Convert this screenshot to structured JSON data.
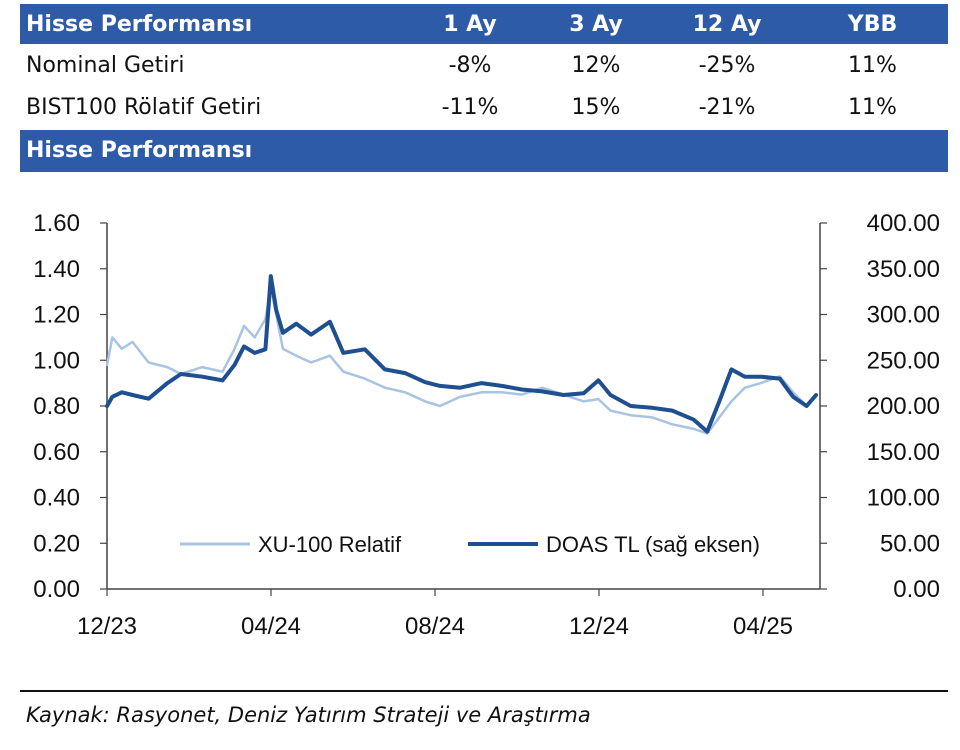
{
  "table": {
    "header": {
      "title": "Hisse Performansı",
      "col1": "1 Ay",
      "col2": "3 Ay",
      "col3": "12 Ay",
      "col4": "YBB"
    },
    "rows": [
      {
        "label": "Nominal Getiri",
        "v1": "-8%",
        "v2": "12%",
        "v3": "-25%",
        "v4": "11%"
      },
      {
        "label": "BIST100 Rölatif Getiri",
        "v1": "-11%",
        "v2": "15%",
        "v3": "-21%",
        "v4": "11%"
      }
    ]
  },
  "chart_header": "Hisse Performansı",
  "source": "Kaynak: Rasyonet, Deniz Yatırım Strateji ve Araştırma",
  "chart_data": {
    "type": "line",
    "x_tick_labels": [
      "12/23",
      "04/24",
      "08/24",
      "12/24",
      "04/25"
    ],
    "x_range": [
      "2023-12",
      "2025-05"
    ],
    "left_ylim": [
      0,
      1.6
    ],
    "left_ticks": [
      "0.00",
      "0.20",
      "0.40",
      "0.60",
      "0.80",
      "1.00",
      "1.20",
      "1.40",
      "1.60"
    ],
    "right_ylim": [
      0,
      400
    ],
    "right_ticks": [
      "0.00",
      "50.00",
      "100.00",
      "150.00",
      "200.00",
      "250.00",
      "300.00",
      "350.00",
      "400.00"
    ],
    "legend_position": "bottom",
    "grid": false,
    "series": [
      {
        "name": "XU-100 Relatif",
        "axis": "left",
        "color": "#a9c3e3",
        "points": [
          [
            "2023-12-01",
            0.98
          ],
          [
            "2023-12-05",
            1.1
          ],
          [
            "2023-12-12",
            1.05
          ],
          [
            "2023-12-20",
            1.08
          ],
          [
            "2024-01-01",
            0.99
          ],
          [
            "2024-01-15",
            0.97
          ],
          [
            "2024-01-25",
            0.94
          ],
          [
            "2024-02-10",
            0.97
          ],
          [
            "2024-02-25",
            0.95
          ],
          [
            "2024-03-05",
            1.05
          ],
          [
            "2024-03-12",
            1.15
          ],
          [
            "2024-03-20",
            1.1
          ],
          [
            "2024-03-28",
            1.18
          ],
          [
            "2024-04-01",
            1.32
          ],
          [
            "2024-04-05",
            1.2
          ],
          [
            "2024-04-10",
            1.05
          ],
          [
            "2024-04-20",
            1.02
          ],
          [
            "2024-05-01",
            0.99
          ],
          [
            "2024-05-15",
            1.02
          ],
          [
            "2024-05-25",
            0.95
          ],
          [
            "2024-06-10",
            0.92
          ],
          [
            "2024-06-25",
            0.88
          ],
          [
            "2024-07-10",
            0.86
          ],
          [
            "2024-07-25",
            0.82
          ],
          [
            "2024-08-05",
            0.8
          ],
          [
            "2024-08-20",
            0.84
          ],
          [
            "2024-09-05",
            0.86
          ],
          [
            "2024-09-20",
            0.86
          ],
          [
            "2024-10-05",
            0.85
          ],
          [
            "2024-10-20",
            0.88
          ],
          [
            "2024-11-05",
            0.85
          ],
          [
            "2024-11-20",
            0.82
          ],
          [
            "2024-12-01",
            0.83
          ],
          [
            "2024-12-10",
            0.78
          ],
          [
            "2024-12-25",
            0.76
          ],
          [
            "2025-01-10",
            0.75
          ],
          [
            "2025-01-25",
            0.72
          ],
          [
            "2025-02-10",
            0.7
          ],
          [
            "2025-02-20",
            0.68
          ],
          [
            "2025-03-01",
            0.75
          ],
          [
            "2025-03-10",
            0.82
          ],
          [
            "2025-03-20",
            0.88
          ],
          [
            "2025-04-01",
            0.9
          ],
          [
            "2025-04-15",
            0.93
          ],
          [
            "2025-04-25",
            0.86
          ],
          [
            "2025-05-05",
            0.8
          ],
          [
            "2025-05-12",
            0.84
          ]
        ]
      },
      {
        "name": "DOAS TL (sağ eksen)",
        "axis": "right",
        "color": "#1d4f91",
        "points": [
          [
            "2023-12-01",
            200
          ],
          [
            "2023-12-05",
            210
          ],
          [
            "2023-12-12",
            215
          ],
          [
            "2023-12-20",
            212
          ],
          [
            "2024-01-01",
            208
          ],
          [
            "2024-01-15",
            225
          ],
          [
            "2024-01-25",
            235
          ],
          [
            "2024-02-10",
            232
          ],
          [
            "2024-02-25",
            228
          ],
          [
            "2024-03-05",
            245
          ],
          [
            "2024-03-12",
            265
          ],
          [
            "2024-03-20",
            258
          ],
          [
            "2024-03-28",
            262
          ],
          [
            "2024-04-01",
            342
          ],
          [
            "2024-04-05",
            305
          ],
          [
            "2024-04-10",
            280
          ],
          [
            "2024-04-20",
            290
          ],
          [
            "2024-05-01",
            278
          ],
          [
            "2024-05-15",
            292
          ],
          [
            "2024-05-25",
            258
          ],
          [
            "2024-06-10",
            262
          ],
          [
            "2024-06-25",
            240
          ],
          [
            "2024-07-10",
            236
          ],
          [
            "2024-07-25",
            226
          ],
          [
            "2024-08-05",
            222
          ],
          [
            "2024-08-20",
            220
          ],
          [
            "2024-09-05",
            225
          ],
          [
            "2024-09-20",
            222
          ],
          [
            "2024-10-05",
            218
          ],
          [
            "2024-10-20",
            216
          ],
          [
            "2024-11-05",
            212
          ],
          [
            "2024-11-20",
            214
          ],
          [
            "2024-12-01",
            228
          ],
          [
            "2024-12-10",
            212
          ],
          [
            "2024-12-25",
            200
          ],
          [
            "2025-01-10",
            198
          ],
          [
            "2025-01-25",
            195
          ],
          [
            "2025-02-10",
            185
          ],
          [
            "2025-02-20",
            172
          ],
          [
            "2025-03-01",
            205
          ],
          [
            "2025-03-10",
            240
          ],
          [
            "2025-03-20",
            232
          ],
          [
            "2025-04-01",
            232
          ],
          [
            "2025-04-15",
            230
          ],
          [
            "2025-04-25",
            210
          ],
          [
            "2025-05-05",
            200
          ],
          [
            "2025-05-12",
            212
          ]
        ]
      }
    ]
  }
}
